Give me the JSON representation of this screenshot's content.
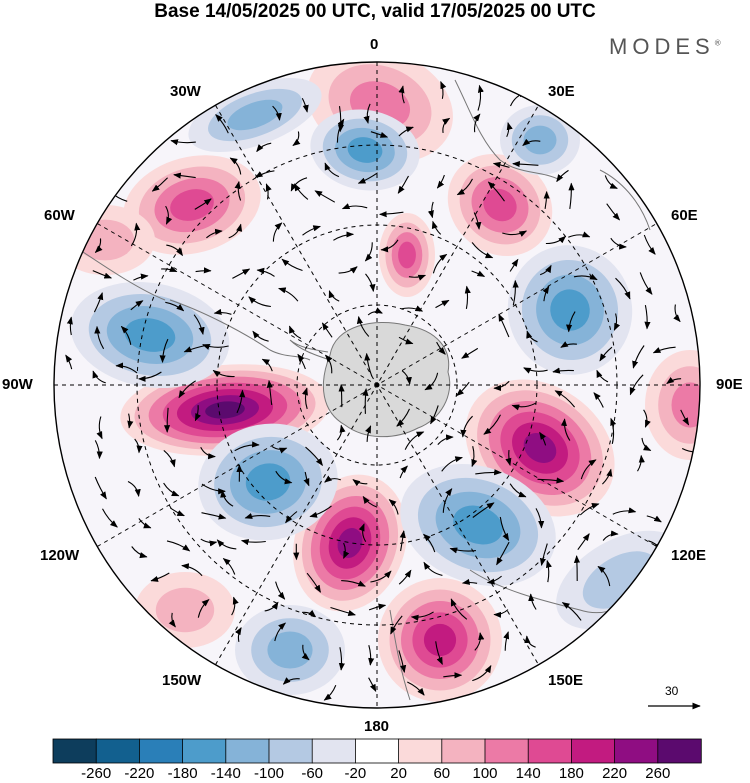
{
  "title": "Base 14/05/2025 00 UTC, valid 17/05/2025 00 UTC",
  "brand": "MODES",
  "brand_mark": "®",
  "longitude_labels": {
    "top": "0",
    "top_right": "30E",
    "right_upper": "60E",
    "right": "90E",
    "right_lower": "120E",
    "bottom_right": "150E",
    "bottom": "180",
    "bottom_left": "150W",
    "left_lower": "120W",
    "left": "90W",
    "left_upper": "60W",
    "top_left": "30W"
  },
  "reference_vector": {
    "label": "30"
  },
  "colorbar": {
    "labels": [
      "-260",
      "-220",
      "-180",
      "-140",
      "-100",
      "-60",
      "-20",
      "20",
      "60",
      "100",
      "140",
      "180",
      "220",
      "260"
    ],
    "colors": [
      "#0d3d5c",
      "#12608f",
      "#2a7fb8",
      "#4d9ccb",
      "#85b3d8",
      "#b4c9e3",
      "#e2e4f0",
      "#ffffff",
      "#fbdada",
      "#f4b3c0",
      "#ec7aa6",
      "#df4a93",
      "#c21b80",
      "#8f0d82",
      "#5b0a6e"
    ]
  },
  "colors": {
    "land": "#d9d9d9",
    "continent_outline": "#777777",
    "grid": "#000000"
  }
}
